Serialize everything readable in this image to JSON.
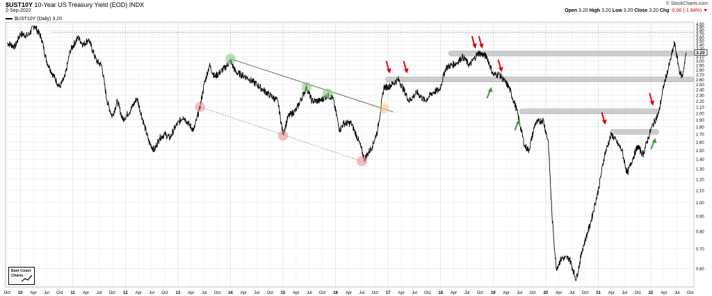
{
  "header": {
    "symbol": "$UST10Y",
    "title": "10-Year US Treasury Yield (EOD)",
    "exchange": "INDX",
    "date": "2-Sep-2022",
    "legend": "$UST10Y (Daily) 3.20",
    "watermark": "© StockCharts.com",
    "open_label": "Open",
    "open": "3.20",
    "high_label": "High",
    "high": "3.20",
    "low_label": "Low",
    "low": "3.20",
    "close_label": "Close",
    "close": "3.20",
    "chg_label": "Chg",
    "chg": "-0.06 (-1.84%)",
    "chg_arrow": "▼"
  },
  "logo": {
    "line1": "East Coast",
    "line2": "Charts"
  },
  "chart_data": {
    "type": "line",
    "series": [
      {
        "name": "$UST10Y",
        "points": [
          [
            2009.75,
            3.45
          ],
          [
            2009.9,
            3.35
          ],
          [
            2010.0,
            3.7
          ],
          [
            2010.15,
            3.65
          ],
          [
            2010.27,
            3.95
          ],
          [
            2010.4,
            3.6
          ],
          [
            2010.5,
            3.0
          ],
          [
            2010.62,
            2.7
          ],
          [
            2010.75,
            2.45
          ],
          [
            2010.85,
            2.65
          ],
          [
            2010.95,
            3.25
          ],
          [
            2011.1,
            3.6
          ],
          [
            2011.2,
            3.4
          ],
          [
            2011.3,
            3.55
          ],
          [
            2011.45,
            3.0
          ],
          [
            2011.55,
            2.9
          ],
          [
            2011.65,
            2.2
          ],
          [
            2011.75,
            1.95
          ],
          [
            2011.85,
            2.2
          ],
          [
            2011.95,
            1.9
          ],
          [
            2012.1,
            2.05
          ],
          [
            2012.22,
            2.25
          ],
          [
            2012.35,
            1.85
          ],
          [
            2012.45,
            1.6
          ],
          [
            2012.55,
            1.5
          ],
          [
            2012.65,
            1.65
          ],
          [
            2012.75,
            1.7
          ],
          [
            2012.85,
            1.65
          ],
          [
            2012.95,
            1.8
          ],
          [
            2013.1,
            1.95
          ],
          [
            2013.3,
            1.75
          ],
          [
            2013.42,
            2.1
          ],
          [
            2013.5,
            2.5
          ],
          [
            2013.6,
            2.9
          ],
          [
            2013.7,
            2.65
          ],
          [
            2013.8,
            2.75
          ],
          [
            2013.9,
            2.85
          ],
          [
            2014.0,
            3.0
          ],
          [
            2014.1,
            2.75
          ],
          [
            2014.3,
            2.65
          ],
          [
            2014.5,
            2.5
          ],
          [
            2014.62,
            2.4
          ],
          [
            2014.75,
            2.3
          ],
          [
            2014.9,
            2.2
          ],
          [
            2015.0,
            1.7
          ],
          [
            2015.1,
            1.95
          ],
          [
            2015.25,
            2.05
          ],
          [
            2015.45,
            2.45
          ],
          [
            2015.55,
            2.2
          ],
          [
            2015.7,
            2.2
          ],
          [
            2015.85,
            2.3
          ],
          [
            2015.95,
            2.25
          ],
          [
            2016.08,
            1.75
          ],
          [
            2016.15,
            1.85
          ],
          [
            2016.3,
            1.85
          ],
          [
            2016.45,
            1.6
          ],
          [
            2016.55,
            1.4
          ],
          [
            2016.7,
            1.55
          ],
          [
            2016.8,
            1.75
          ],
          [
            2016.92,
            2.45
          ],
          [
            2017.0,
            2.45
          ],
          [
            2017.2,
            2.6
          ],
          [
            2017.4,
            2.2
          ],
          [
            2017.55,
            2.35
          ],
          [
            2017.7,
            2.2
          ],
          [
            2017.85,
            2.35
          ],
          [
            2017.98,
            2.4
          ],
          [
            2018.1,
            2.85
          ],
          [
            2018.3,
            2.95
          ],
          [
            2018.42,
            3.1
          ],
          [
            2018.55,
            2.9
          ],
          [
            2018.72,
            3.2
          ],
          [
            2018.88,
            3.1
          ],
          [
            2019.0,
            2.7
          ],
          [
            2019.12,
            2.7
          ],
          [
            2019.3,
            2.45
          ],
          [
            2019.45,
            2.05
          ],
          [
            2019.6,
            1.55
          ],
          [
            2019.68,
            1.5
          ],
          [
            2019.8,
            1.85
          ],
          [
            2019.95,
            1.9
          ],
          [
            2020.05,
            1.6
          ],
          [
            2020.12,
            0.9
          ],
          [
            2020.2,
            0.6
          ],
          [
            2020.3,
            0.65
          ],
          [
            2020.45,
            0.65
          ],
          [
            2020.58,
            0.55
          ],
          [
            2020.7,
            0.7
          ],
          [
            2020.85,
            0.85
          ],
          [
            2021.0,
            1.1
          ],
          [
            2021.12,
            1.45
          ],
          [
            2021.25,
            1.7
          ],
          [
            2021.35,
            1.6
          ],
          [
            2021.45,
            1.5
          ],
          [
            2021.55,
            1.25
          ],
          [
            2021.65,
            1.4
          ],
          [
            2021.75,
            1.55
          ],
          [
            2021.85,
            1.45
          ],
          [
            2021.95,
            1.65
          ],
          [
            2022.02,
            1.8
          ],
          [
            2022.15,
            2.0
          ],
          [
            2022.25,
            2.5
          ],
          [
            2022.35,
            2.9
          ],
          [
            2022.45,
            3.45
          ],
          [
            2022.55,
            2.75
          ],
          [
            2022.6,
            2.65
          ],
          [
            2022.67,
            3.2
          ]
        ]
      }
    ],
    "x_ticks": [
      {
        "x": 2009.75,
        "label": "Oct"
      },
      {
        "x": 2010.0,
        "label": "10"
      },
      {
        "x": 2010.25,
        "label": "Apr"
      },
      {
        "x": 2010.5,
        "label": "Jul"
      },
      {
        "x": 2010.75,
        "label": "Oct"
      },
      {
        "x": 2011.0,
        "label": "11"
      },
      {
        "x": 2011.25,
        "label": "Apr"
      },
      {
        "x": 2011.5,
        "label": "Jul"
      },
      {
        "x": 2011.75,
        "label": "Oct"
      },
      {
        "x": 2012.0,
        "label": "12"
      },
      {
        "x": 2012.25,
        "label": "Apr"
      },
      {
        "x": 2012.5,
        "label": "Jul"
      },
      {
        "x": 2012.75,
        "label": "Oct"
      },
      {
        "x": 2013.0,
        "label": "13"
      },
      {
        "x": 2013.25,
        "label": "Apr"
      },
      {
        "x": 2013.5,
        "label": "Jul"
      },
      {
        "x": 2013.75,
        "label": "Oct"
      },
      {
        "x": 2014.0,
        "label": "14"
      },
      {
        "x": 2014.25,
        "label": "Apr"
      },
      {
        "x": 2014.5,
        "label": "Jul"
      },
      {
        "x": 2014.75,
        "label": "Oct"
      },
      {
        "x": 2015.0,
        "label": "15"
      },
      {
        "x": 2015.25,
        "label": "Apr"
      },
      {
        "x": 2015.5,
        "label": "Jul"
      },
      {
        "x": 2015.75,
        "label": "Oct"
      },
      {
        "x": 2016.0,
        "label": "16"
      },
      {
        "x": 2016.25,
        "label": "Apr"
      },
      {
        "x": 2016.5,
        "label": "Jul"
      },
      {
        "x": 2016.75,
        "label": "Oct"
      },
      {
        "x": 2017.0,
        "label": "17"
      },
      {
        "x": 2017.25,
        "label": "Apr"
      },
      {
        "x": 2017.5,
        "label": "Jul"
      },
      {
        "x": 2017.75,
        "label": "Oct"
      },
      {
        "x": 2018.0,
        "label": "18"
      },
      {
        "x": 2018.25,
        "label": "Apr"
      },
      {
        "x": 2018.5,
        "label": "Jul"
      },
      {
        "x": 2018.75,
        "label": "Oct"
      },
      {
        "x": 2019.0,
        "label": "19"
      },
      {
        "x": 2019.25,
        "label": "Apr"
      },
      {
        "x": 2019.5,
        "label": "Jul"
      },
      {
        "x": 2019.75,
        "label": "Oct"
      },
      {
        "x": 2020.0,
        "label": "20"
      },
      {
        "x": 2020.25,
        "label": "Apr"
      },
      {
        "x": 2020.5,
        "label": "Jul"
      },
      {
        "x": 2020.75,
        "label": "Oct"
      },
      {
        "x": 2021.0,
        "label": "21"
      },
      {
        "x": 2021.25,
        "label": "Apr"
      },
      {
        "x": 2021.5,
        "label": "Jul"
      },
      {
        "x": 2021.75,
        "label": "Oct"
      },
      {
        "x": 2022.0,
        "label": "22"
      },
      {
        "x": 2022.25,
        "label": "Apr"
      },
      {
        "x": 2022.5,
        "label": "Jul"
      },
      {
        "x": 2022.75,
        "label": "Oct"
      }
    ],
    "y_ticks": [
      "4.00",
      "3.90",
      "3.80",
      "3.70",
      "3.60",
      "3.50",
      "3.40",
      "3.30",
      "3.20",
      "3.10",
      "3.00",
      "2.90",
      "2.80",
      "2.70",
      "2.60",
      "2.50",
      "2.40",
      "2.30",
      "2.20",
      "2.10",
      "2.00",
      "1.90",
      "1.80",
      "1.70",
      "1.60",
      "1.50",
      "1.40",
      "1.30",
      "1.20",
      "1.10",
      "1.00",
      "0.90",
      "0.80",
      "0.70",
      "0.60"
    ],
    "y_scale": "log",
    "ylim": [
      0.52,
      4.05
    ],
    "xlim": [
      2009.72,
      2022.82
    ],
    "last_value_label": "3.20",
    "reference_line": {
      "y": 3.75,
      "style": "dotted"
    },
    "trendlines": [
      {
        "x1": 2014.0,
        "y1": 3.05,
        "x2": 2017.1,
        "y2": 2.02,
        "style": "solid"
      },
      {
        "x1": 2013.42,
        "y1": 2.1,
        "x2": 2016.6,
        "y2": 1.36,
        "style": "dotted"
      }
    ],
    "zones": [
      {
        "x1": 2018.15,
        "x2": 2022.82,
        "y": 3.18
      },
      {
        "x1": 2016.95,
        "x2": 2022.82,
        "y": 2.6
      },
      {
        "x1": 2019.5,
        "x2": 2022.15,
        "y": 2.03
      },
      {
        "x1": 2021.22,
        "x2": 2022.15,
        "y": 1.73
      }
    ],
    "circles": [
      {
        "x": 2014.0,
        "y": 3.05,
        "color": "#7fc97f"
      },
      {
        "x": 2015.45,
        "y": 2.45,
        "color": "#7fc97f"
      },
      {
        "x": 2015.85,
        "y": 2.33,
        "color": "#7fc97f"
      },
      {
        "x": 2016.92,
        "y": 2.08,
        "color": "#f9c784"
      },
      {
        "x": 2013.42,
        "y": 2.1,
        "color": "#f08c8c"
      },
      {
        "x": 2015.0,
        "y": 1.68,
        "color": "#f08c8c"
      },
      {
        "x": 2016.5,
        "y": 1.38,
        "color": "#f08c8c"
      }
    ],
    "arrows": [
      {
        "x": 2017.02,
        "y": 2.72,
        "dir": "down",
        "color": "#e00000"
      },
      {
        "x": 2017.35,
        "y": 2.72,
        "dir": "down",
        "color": "#e00000"
      },
      {
        "x": 2018.65,
        "y": 3.3,
        "dir": "down",
        "color": "#e00000"
      },
      {
        "x": 2018.78,
        "y": 3.3,
        "dir": "down",
        "color": "#e00000"
      },
      {
        "x": 2019.15,
        "y": 2.75,
        "dir": "down",
        "color": "#e00000"
      },
      {
        "x": 2021.12,
        "y": 1.83,
        "dir": "down",
        "color": "#e00000"
      },
      {
        "x": 2022.03,
        "y": 2.12,
        "dir": "down",
        "color": "#e00000"
      },
      {
        "x": 2018.95,
        "y": 2.45,
        "dir": "up",
        "color": "#3a9a3a"
      },
      {
        "x": 2019.48,
        "y": 1.91,
        "dir": "up",
        "color": "#3a9a3a"
      },
      {
        "x": 2022.07,
        "y": 1.65,
        "dir": "up",
        "color": "#3a9a3a"
      }
    ],
    "grid": true
  }
}
